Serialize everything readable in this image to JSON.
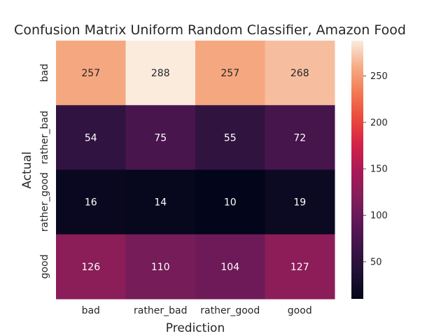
{
  "chart_data": {
    "type": "heatmap",
    "title": "Confusion Matrix Uniform Random Classifier, Amazon Food",
    "xlabel": "Prediction",
    "ylabel": "Actual",
    "x_categories": [
      "bad",
      "rather_bad",
      "rather_good",
      "good"
    ],
    "y_categories": [
      "bad",
      "rather_bad",
      "rather_good",
      "good"
    ],
    "values": [
      [
        257,
        288,
        257,
        268
      ],
      [
        54,
        75,
        55,
        72
      ],
      [
        16,
        14,
        10,
        19
      ],
      [
        126,
        110,
        104,
        127
      ]
    ],
    "colormap": "rocket",
    "vmin": 10,
    "vmax": 288,
    "colorbar_ticks": [
      50,
      100,
      150,
      200,
      250
    ],
    "legend": "colorbar-right"
  }
}
